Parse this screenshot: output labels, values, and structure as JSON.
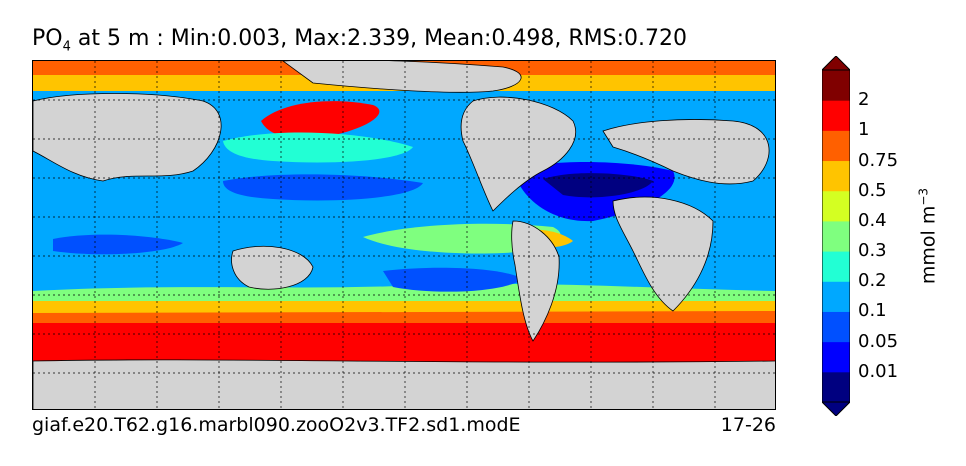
{
  "title": {
    "var": "PO",
    "sub": "4",
    "rest": " at 5 m : Min:0.003, Max:2.339, Mean:0.498, RMS:0.720"
  },
  "footer": {
    "case_name": "giaf.e20.T62.g16.marbl090.zooO2v3.TF2.sd1.modE",
    "years": "17-26"
  },
  "colorbar": {
    "units_main": "mmol m",
    "units_sup": "−3",
    "labels": [
      "2",
      "1",
      "0.75",
      "0.5",
      "0.4",
      "0.3",
      "0.2",
      "0.1",
      "0.05",
      "0.01"
    ],
    "colors": [
      "#000080",
      "#0000ff",
      "#0050ff",
      "#00a8ff",
      "#22ffd4",
      "#7fff7f",
      "#d4ff22",
      "#ffc400",
      "#ff6000",
      "#ff0000",
      "#800000"
    ]
  },
  "map": {
    "land_color": "#d3d3d3"
  }
}
